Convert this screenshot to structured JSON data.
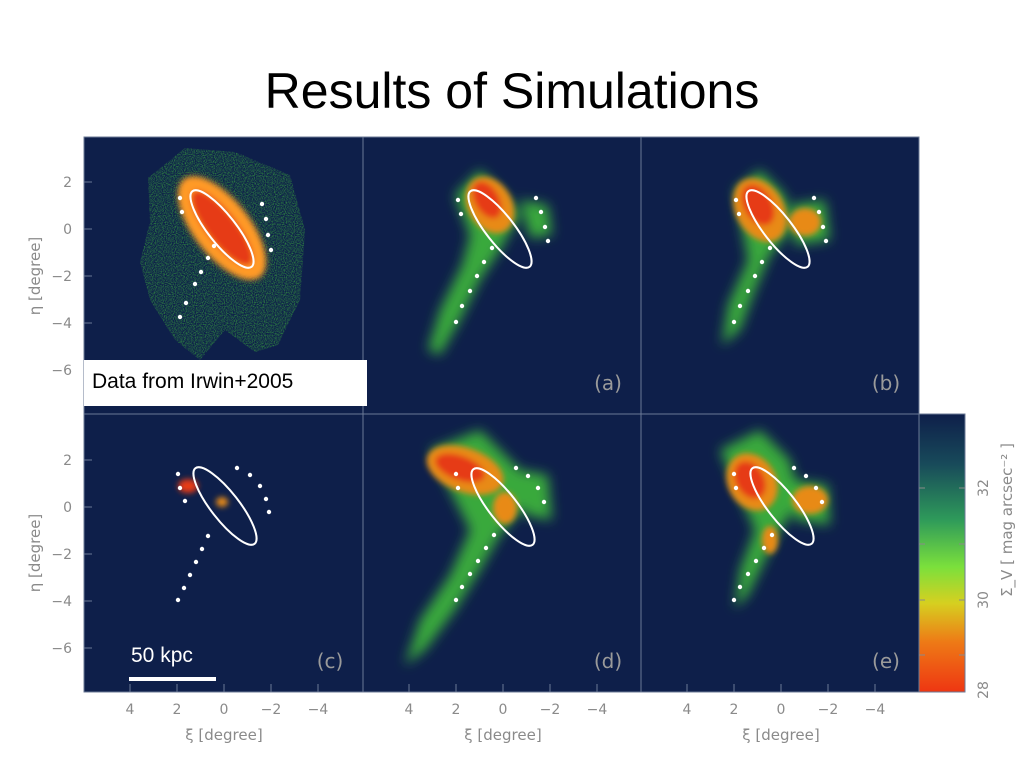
{
  "slide": {
    "title": "Results of Simulations",
    "caption": "Data from Irwin+2005",
    "scale_bar_label": "50 kpc"
  },
  "colors": {
    "background": "#0e1f4a",
    "stars_red": "#e63b12",
    "stars_orange": "#e88a14",
    "stars_green": "#3fb83a",
    "markers": "#ffffff",
    "ellipse": "#ffffff"
  },
  "chart_data": {
    "type": "heatmap",
    "xlabel": "ξ [degree]",
    "ylabel": "η [degree]",
    "xlim": [
      6,
      -6
    ],
    "ylim": [
      -8,
      4
    ],
    "x_ticks": [
      "4",
      "2",
      "0",
      "−2",
      "−4"
    ],
    "y_ticks": [
      "2",
      "0",
      "−2",
      "−4",
      "−6"
    ],
    "colorbar": {
      "label": "Σ_V [ mag arcsec⁻² ]",
      "ticks": [
        "32",
        "30",
        "28"
      ],
      "range": [
        28,
        33
      ]
    },
    "panels": [
      {
        "id": "data",
        "label": ""
      },
      {
        "id": "a",
        "label": "(a)"
      },
      {
        "id": "b",
        "label": "(b)"
      },
      {
        "id": "c",
        "label": "(c)"
      },
      {
        "id": "d",
        "label": "(d)"
      },
      {
        "id": "e",
        "label": "(e)"
      }
    ]
  }
}
